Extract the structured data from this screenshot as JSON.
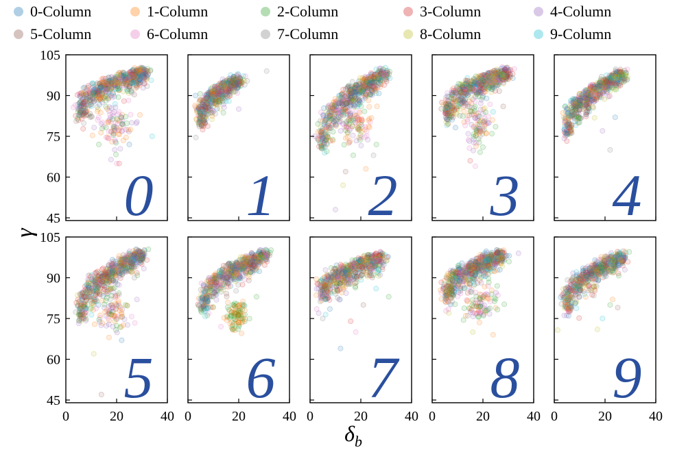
{
  "chart_data": {
    "type": "scatter",
    "xlabel": "δb",
    "ylabel": "γ",
    "xlim": [
      0,
      40
    ],
    "ylim": [
      44,
      105
    ],
    "xticks": [
      0,
      20,
      40
    ],
    "yticks": [
      45,
      60,
      75,
      90,
      105
    ],
    "grid": false,
    "legend_placement": "top",
    "series": [
      {
        "name": "0-Column",
        "color": "#1f77b4"
      },
      {
        "name": "1-Column",
        "color": "#ff7f0e"
      },
      {
        "name": "2-Column",
        "color": "#2ca02c"
      },
      {
        "name": "3-Column",
        "color": "#d62728"
      },
      {
        "name": "4-Column",
        "color": "#9467bd"
      },
      {
        "name": "5-Column",
        "color": "#8c564b"
      },
      {
        "name": "6-Column",
        "color": "#e377c2"
      },
      {
        "name": "7-Column",
        "color": "#7f7f7f"
      },
      {
        "name": "8-Column",
        "color": "#bcbd22"
      },
      {
        "name": "9-Column",
        "color": "#17becf"
      }
    ],
    "panels": [
      {
        "digit": "0",
        "band": {
          "x0": 5,
          "x1": 32,
          "y0": 88,
          "y1": 100,
          "thick": 5.5
        },
        "clusters": [
          {
            "cx": 19,
            "cy": 79,
            "sx": 3.5,
            "sy": 4,
            "series": [
              1,
              4,
              6,
              2
            ]
          }
        ],
        "outliers": [
          [
            25,
            72
          ],
          [
            21,
            65
          ],
          [
            20,
            65
          ],
          [
            34,
            75
          ],
          [
            13,
            72
          ]
        ]
      },
      {
        "digit": "1",
        "band": {
          "x0": 4,
          "x1": 20,
          "y0": 84,
          "y1": 97,
          "thick": 4.5
        },
        "clusters": [],
        "outliers": [
          [
            6,
            79
          ],
          [
            20,
            85
          ],
          [
            31,
            99
          ],
          [
            3,
            90
          ]
        ]
      },
      {
        "digit": "2",
        "band": {
          "x0": 4,
          "x1": 30,
          "y0": 77,
          "y1": 100,
          "thick": 6
        },
        "clusters": [
          {
            "cx": 19,
            "cy": 79,
            "sx": 3,
            "sy": 3.5,
            "series": [
              1,
              4,
              2,
              6
            ]
          }
        ],
        "outliers": [
          [
            17,
            68
          ],
          [
            14,
            62
          ],
          [
            13,
            57
          ],
          [
            22,
            63
          ],
          [
            10,
            48
          ],
          [
            25,
            68
          ]
        ]
      },
      {
        "digit": "3",
        "band": {
          "x0": 5,
          "x1": 30,
          "y0": 87,
          "y1": 100,
          "thick": 5.5
        },
        "clusters": [
          {
            "cx": 18,
            "cy": 80,
            "sx": 2.5,
            "sy": 4,
            "series": [
              1,
              4,
              6,
              2
            ]
          }
        ],
        "outliers": [
          [
            15,
            66
          ],
          [
            17,
            64
          ],
          [
            24,
            84
          ],
          [
            20,
            71
          ],
          [
            28,
            86
          ]
        ]
      },
      {
        "digit": "4",
        "band": {
          "x0": 4,
          "x1": 27,
          "y0": 80,
          "y1": 99,
          "thick": 4.5
        },
        "clusters": [],
        "outliers": [
          [
            19,
            77
          ],
          [
            22,
            70
          ],
          [
            24,
            82
          ]
        ]
      },
      {
        "digit": "5",
        "band": {
          "x0": 5,
          "x1": 30,
          "y0": 80,
          "y1": 100,
          "thick": 5.5
        },
        "clusters": [
          {
            "cx": 19,
            "cy": 78,
            "sx": 3,
            "sy": 4,
            "series": [
              1,
              4,
              2,
              6
            ]
          }
        ],
        "outliers": [
          [
            14,
            47
          ],
          [
            11,
            62
          ],
          [
            17,
            68
          ],
          [
            28,
            82
          ],
          [
            27,
            90
          ],
          [
            22,
            67
          ]
        ]
      },
      {
        "digit": "6",
        "band": {
          "x0": 5,
          "x1": 31,
          "y0": 83,
          "y1": 100,
          "thick": 5
        },
        "clusters": [
          {
            "cx": 19,
            "cy": 76,
            "sx": 2,
            "sy": 2.5,
            "series": [
              1,
              2
            ]
          }
        ],
        "outliers": [
          [
            13,
            72
          ],
          [
            22,
            80
          ],
          [
            27,
            83
          ],
          [
            24,
            89
          ]
        ]
      },
      {
        "digit": "7",
        "band": {
          "x0": 4,
          "x1": 29,
          "y0": 88,
          "y1": 99,
          "thick": 6
        },
        "clusters": [],
        "outliers": [
          [
            5,
            75
          ],
          [
            12,
            64
          ],
          [
            16,
            74
          ],
          [
            18,
            70
          ],
          [
            26,
            86
          ],
          [
            31,
            83
          ],
          [
            21,
            80
          ]
        ]
      },
      {
        "digit": "8",
        "band": {
          "x0": 5,
          "x1": 28,
          "y0": 87,
          "y1": 100,
          "thick": 5.5
        },
        "clusters": [
          {
            "cx": 19,
            "cy": 80,
            "sx": 3,
            "sy": 4,
            "series": [
              1,
              4,
              6,
              2
            ]
          }
        ],
        "outliers": [
          [
            16,
            70
          ],
          [
            24,
            69
          ],
          [
            34,
            99
          ],
          [
            14,
            76
          ]
        ]
      },
      {
        "digit": "9",
        "band": {
          "x0": 4,
          "x1": 27,
          "y0": 83,
          "y1": 99,
          "thick": 5
        },
        "clusters": [],
        "outliers": [
          [
            19,
            75
          ],
          [
            22,
            80
          ],
          [
            25,
            79
          ],
          [
            17,
            71
          ],
          [
            23,
            82
          ]
        ]
      }
    ]
  }
}
